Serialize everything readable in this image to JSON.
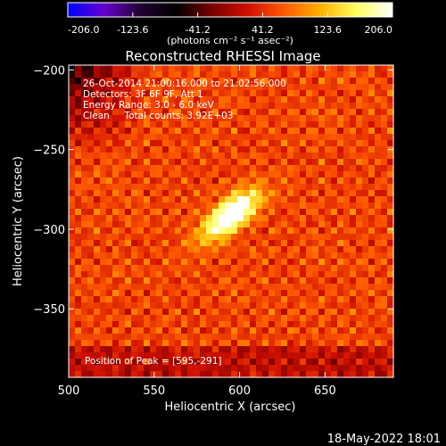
{
  "colorbar": {
    "ticks": [
      "-206.0",
      "-123.6",
      "-41.2",
      "41.2",
      "123.6",
      "206.0"
    ],
    "unit_label": "(photons cm⁻² s⁻¹ asec⁻²)",
    "range": [
      -206.0,
      206.0
    ],
    "colors": [
      "#0000ff",
      "#6600cc",
      "#220033",
      "#000000",
      "#7a0000",
      "#d01000",
      "#ff5a00",
      "#ffb000",
      "#ffff60",
      "#ffffff"
    ]
  },
  "chart_data": {
    "type": "heatmap",
    "title": "Reconstructed RHESSI Image",
    "xlabel": "Heliocentric X (arcsec)",
    "ylabel": "Heliocentric Y (arcsec)",
    "xlim": [
      500,
      690
    ],
    "ylim": [
      -393,
      -197
    ],
    "xticks": [
      500,
      550,
      600,
      650
    ],
    "yticks": [
      -200,
      -250,
      -300,
      -350
    ],
    "xtick_labels": [
      "500",
      "550",
      "600",
      "650"
    ],
    "ytick_labels": [
      "−200",
      "−250",
      "−300",
      "−350"
    ],
    "value_range": [
      -206.0,
      206.0
    ],
    "peak": {
      "x": 595,
      "y": -291,
      "value": 206.0
    },
    "annotations": [
      "26-Oct-2014 21:00:16.000 to 21:02:56.000",
      "Detectors: 3F 6F 9F, Att 1",
      "Energy Range: 3.0 - 6.0 keV",
      "Clean     Total counts: 3.92E+03"
    ],
    "peak_text": "Position of Peak = [595,-291]"
  },
  "footer_timestamp": "18-May-2022 18:01"
}
